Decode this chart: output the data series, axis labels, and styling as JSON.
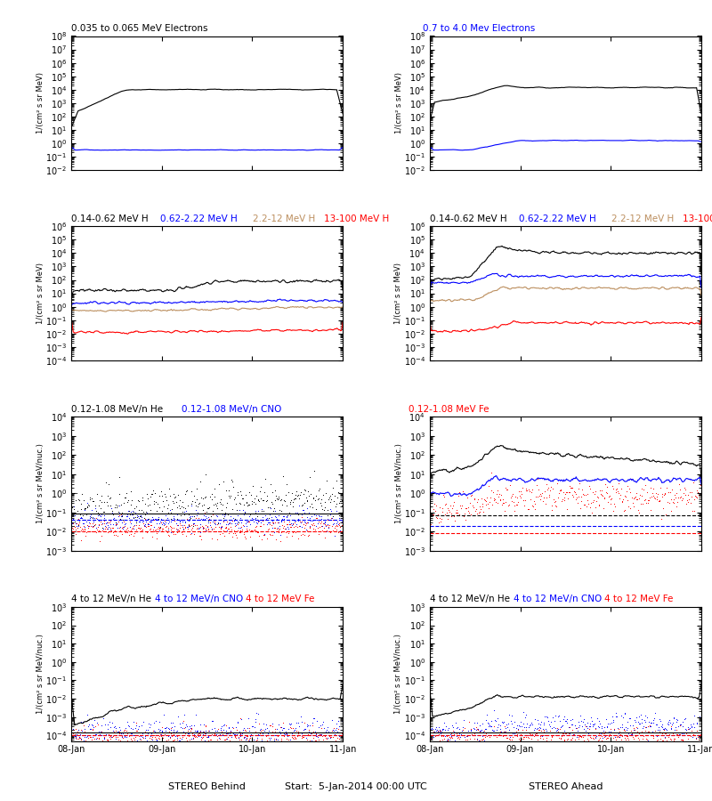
{
  "title_r1l_1": "0.035 to 0.065 MeV Electrons",
  "title_r1l_2": "0.7 to 4.0 Mev Electrons",
  "title_r1l_1_color": "#000000",
  "title_r1l_2_color": "#0000ff",
  "title_r2l_1": "0.14-0.62 MeV H",
  "title_r2l_2": "0.62-2.22 MeV H",
  "title_r2l_3": "2.2-12 MeV H",
  "title_r2l_4": "13-100 MeV H",
  "title_r2l_1_color": "#000000",
  "title_r2l_2_color": "#0000ff",
  "title_r2l_3_color": "#bc8f5f",
  "title_r2l_4_color": "#ff0000",
  "title_r3l_1": "0.12-1.08 MeV/n He",
  "title_r3l_2": "0.12-1.08 MeV/n CNO",
  "title_r3l_1_color": "#000000",
  "title_r3l_2_color": "#0000ff",
  "title_r3r_1": "0.12-1.08 MeV Fe",
  "title_r3r_1_color": "#ff0000",
  "title_r4l_1": "4 to 12 MeV/n He",
  "title_r4l_2": "4 to 12 MeV/n CNO",
  "title_r4l_3": "4 to 12 MeV Fe",
  "title_r4l_1_color": "#000000",
  "title_r4l_2_color": "#0000ff",
  "title_r4l_3_color": "#ff0000",
  "xlabel_left": "STEREO Behind",
  "xlabel_right": "STEREO Ahead",
  "xlabel_center": "Start:  5-Jan-2014 00:00 UTC",
  "ylabel_electrons": "1/(cm² s sr MeV)",
  "ylabel_H": "1/(cm² s sr MeV)",
  "ylabel_nuc": "1/(cm² s sr MeV/nuc.)",
  "background_color": "#ffffff",
  "color_black": "#000000",
  "color_blue": "#0000ff",
  "color_red": "#ff0000",
  "color_tan": "#bc8f5f",
  "tick_labels": [
    "08-Jan",
    "09-Jan",
    "10-Jan",
    "11-Jan"
  ]
}
